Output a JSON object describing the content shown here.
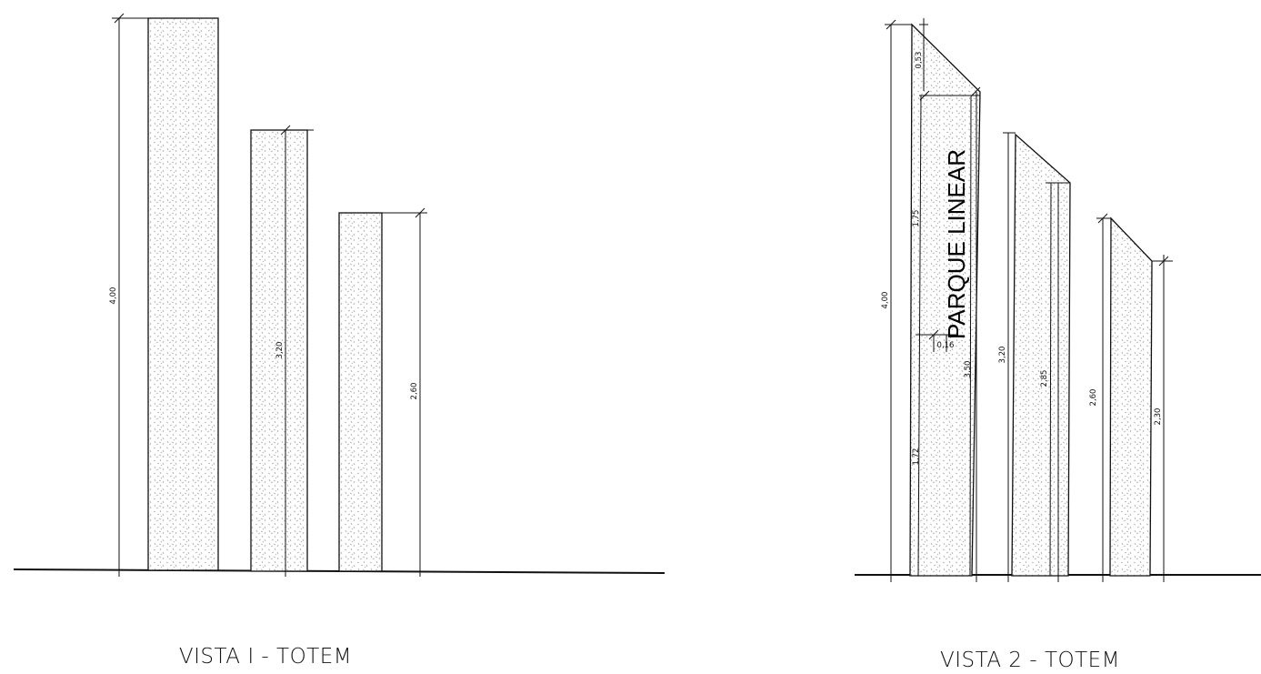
{
  "view1": {
    "caption": "VISTA I - TOTEM",
    "dimensions": {
      "totem_1": "4,00",
      "totem_2": "3,20",
      "totem_3": "2,60"
    }
  },
  "view2": {
    "caption": "VISTA 2 - TOTEM",
    "brand_text": "PARQUE LINEAR",
    "dimensions": {
      "top_slope": "0,53",
      "upper": "1,75",
      "thickness": "0,16",
      "lower": "1,72",
      "totem_1_total": "4,00",
      "totem_1_front": "3,50",
      "totem_2_total": "3,20",
      "totem_2_front": "2,85",
      "totem_3_total": "2,60",
      "totem_3_front": "2,30"
    }
  }
}
